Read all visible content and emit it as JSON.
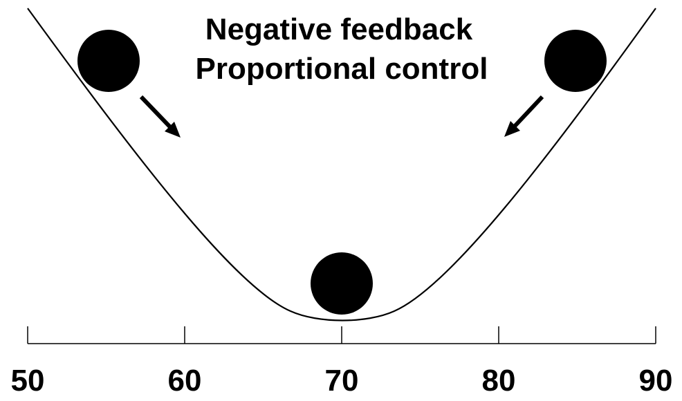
{
  "title": {
    "line1": "Negative feedback",
    "line2": "Proportional control"
  },
  "axis": {
    "min": 50,
    "max": 90,
    "ticks": [
      50,
      60,
      70,
      80,
      90
    ],
    "tick_labels": [
      "50",
      "60",
      "70",
      "80",
      "90"
    ]
  },
  "curve": {
    "shape": "valley",
    "minimum_at": 70
  },
  "balls": [
    {
      "name": "left",
      "x_value": 55,
      "arrow_direction": "down-right"
    },
    {
      "name": "right",
      "x_value": 85,
      "arrow_direction": "down-left"
    },
    {
      "name": "bottom",
      "x_value": 70,
      "arrow_direction": "none"
    }
  ],
  "colors": {
    "ink": "#000000",
    "background": "#ffffff"
  }
}
